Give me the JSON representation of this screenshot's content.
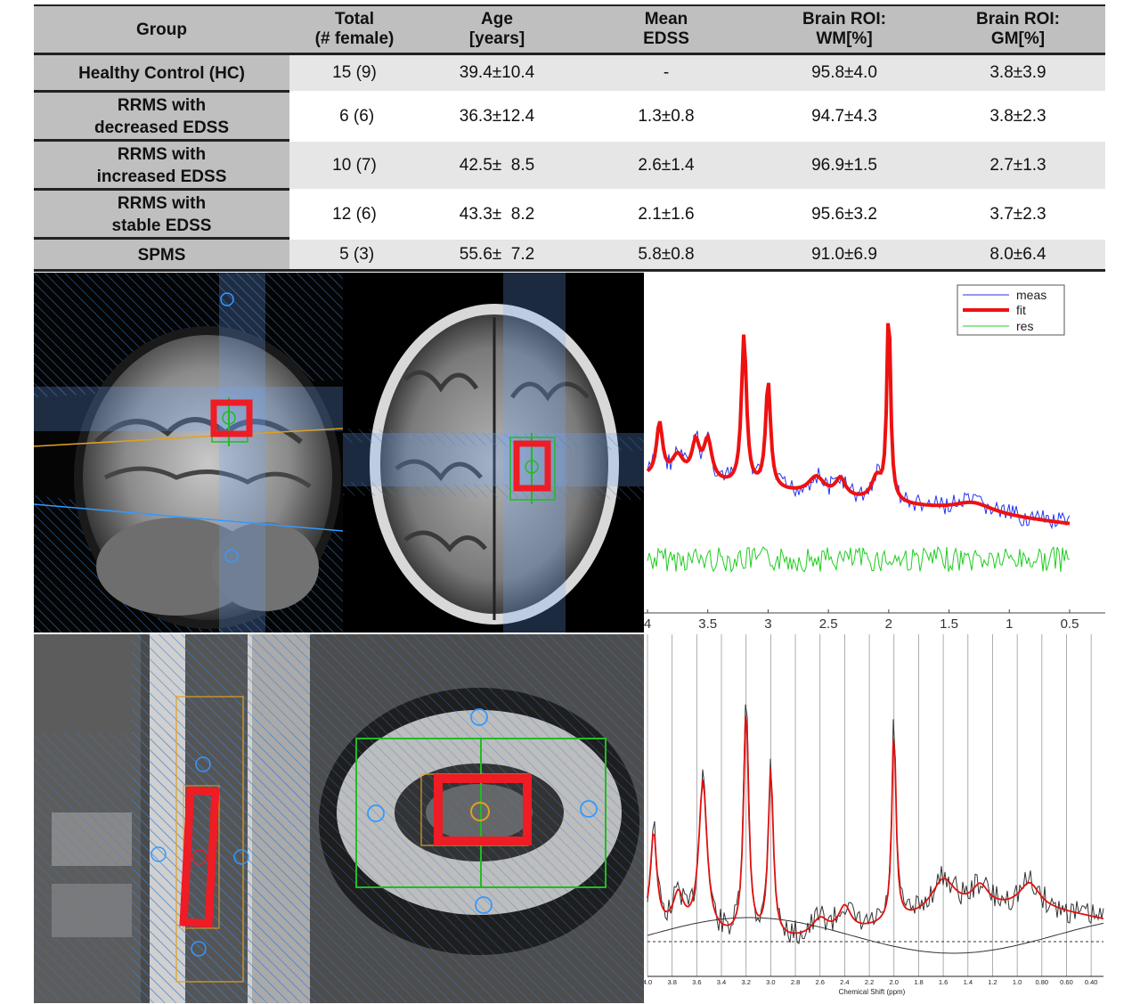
{
  "table": {
    "headers": [
      {
        "line1": "Group",
        "line2": ""
      },
      {
        "line1": "Total",
        "line2": "(# female)"
      },
      {
        "line1": "Age",
        "line2": "[years]"
      },
      {
        "line1": "Mean",
        "line2": "EDSS"
      },
      {
        "line1": "Brain ROI:",
        "line2": "WM[%]"
      },
      {
        "line1": "Brain ROI:",
        "line2": "GM[%]"
      }
    ],
    "rows": [
      {
        "group1": "Healthy Control (HC)",
        "group2": "",
        "total": "15 (9)",
        "age": "39.4±10.4",
        "edss": "-",
        "wm": "95.8±4.0",
        "gm": "3.8±3.9"
      },
      {
        "group1": "RRMS with",
        "group2": "decreased EDSS",
        "total": " 6 (6)",
        "age": "36.3±12.4",
        "edss": "1.3±0.8",
        "wm": "94.7±4.3",
        "gm": "3.8±2.3"
      },
      {
        "group1": "RRMS with",
        "group2": "increased EDSS",
        "total": "10 (7)",
        "age": "42.5±  8.5",
        "edss": "2.6±1.4",
        "wm": "96.9±1.5",
        "gm": "2.7±1.3"
      },
      {
        "group1": "RRMS with",
        "group2": "stable EDSS",
        "total": "12 (6)",
        "age": "43.3±  8.2",
        "edss": "2.1±1.6",
        "wm": "95.6±3.2",
        "gm": "3.7±2.3"
      },
      {
        "group1": "SPMS",
        "group2": "",
        "total": " 5 (3)",
        "age": "55.6±  7.2",
        "edss": "5.8±0.8",
        "wm": "91.0±6.9",
        "gm": "8.0±6.4"
      }
    ]
  },
  "brain_spectrum": {
    "legend": [
      "meas",
      "fit",
      "res"
    ],
    "colors": {
      "meas": "#2233ee",
      "fit": "#ee1111",
      "res": "#22cc22"
    },
    "x_ticks": [
      "4",
      "3.5",
      "3",
      "2.5",
      "2",
      "1.5",
      "1",
      "0.5"
    ]
  },
  "spine_spectrum": {
    "x_ticks": [
      "4.0",
      "3.8",
      "3.6",
      "3.4",
      "3.2",
      "3.0",
      "2.8",
      "2.6",
      "2.4",
      "2.2",
      "2.0",
      "1.8",
      "1.6",
      "1.4",
      "1.2",
      "1.0",
      "0.80",
      "0.60",
      "0.40"
    ],
    "xlabel": "Chemical Shift (ppm)",
    "colors": {
      "meas": "#333333",
      "fit": "#dd1111",
      "baseline": "#333333"
    }
  },
  "overlay_colors": {
    "voxel": "#ee1c24",
    "slab": "#3399ff",
    "grid": "#22bb22",
    "shim": "#e0a020"
  }
}
